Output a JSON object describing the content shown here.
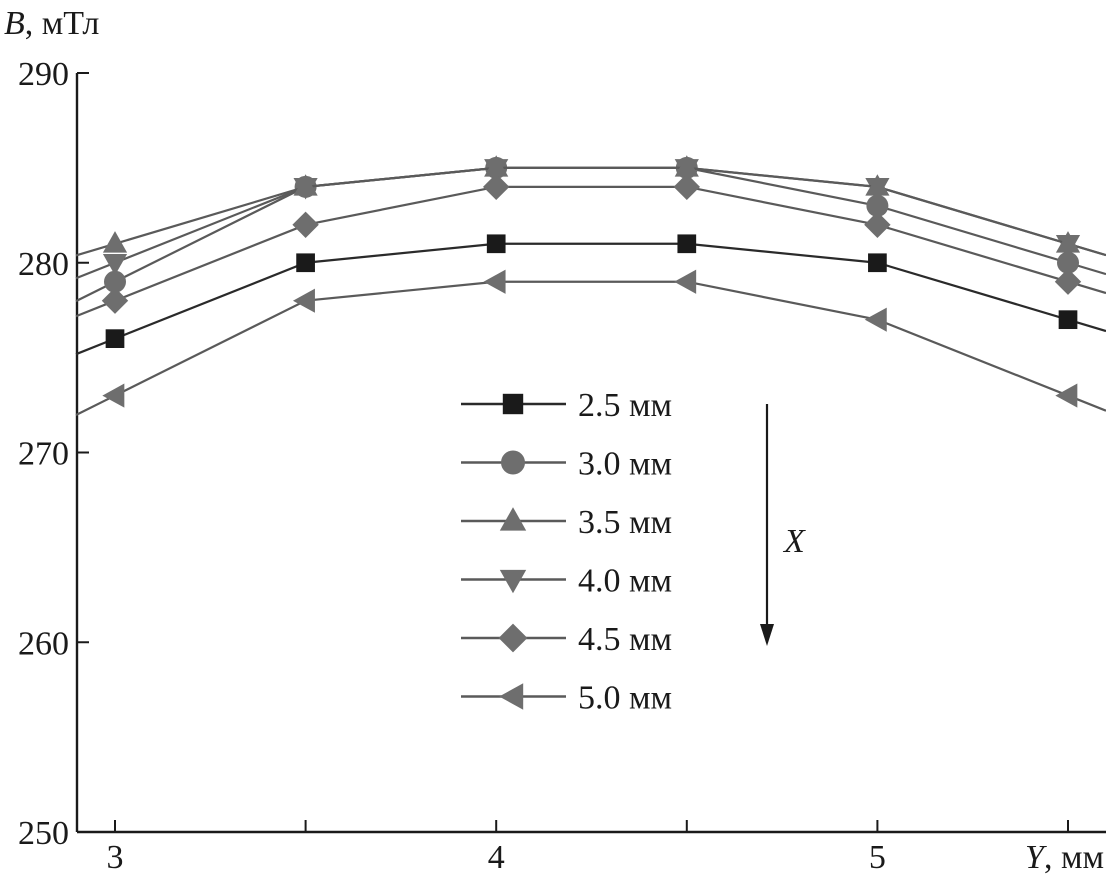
{
  "chart_data": {
    "type": "line",
    "ylabel_var": "B",
    "ylabel_unit": ", мТл",
    "xlabel_var": "Y",
    "xlabel_unit": ", мм",
    "xlim": [
      2.98,
      5.52
    ],
    "ylim": [
      250,
      290
    ],
    "x_ticks": [
      3,
      3.5,
      4,
      4.5,
      5,
      5.5
    ],
    "x_tick_labels": [
      "3",
      "",
      "4",
      "",
      "5",
      ""
    ],
    "y_ticks": [
      250,
      260,
      270,
      280,
      290
    ],
    "y_tick_labels": [
      "250",
      "260",
      "270",
      "280",
      "290"
    ],
    "x": [
      3.0,
      3.5,
      4.0,
      4.5,
      5.0,
      5.5
    ],
    "series": [
      {
        "name": "2.5 мм",
        "marker": "square",
        "color": "#1a1a1a",
        "line_color": "#2a2a2a",
        "values": [
          276,
          280,
          281,
          281,
          280,
          277
        ]
      },
      {
        "name": "3.0 мм",
        "marker": "circle",
        "color": "#6e6e6e",
        "line_color": "#5a5a5a",
        "values": [
          279,
          284,
          285,
          285,
          283,
          280
        ]
      },
      {
        "name": "3.5 мм",
        "marker": "triangle-up",
        "color": "#6e6e6e",
        "line_color": "#5a5a5a",
        "values": [
          281,
          284,
          285,
          285,
          284,
          281
        ]
      },
      {
        "name": "4.0 мм",
        "marker": "triangle-down",
        "color": "#6e6e6e",
        "line_color": "#5a5a5a",
        "values": [
          280,
          284,
          285,
          285,
          284,
          281
        ]
      },
      {
        "name": "4.5 мм",
        "marker": "diamond",
        "color": "#6e6e6e",
        "line_color": "#5a5a5a",
        "values": [
          278,
          282,
          284,
          284,
          282,
          279
        ]
      },
      {
        "name": "5.0 мм",
        "marker": "triangle-left",
        "color": "#6e6e6e",
        "line_color": "#5a5a5a",
        "values": [
          273,
          278,
          279,
          279,
          277,
          273
        ]
      }
    ],
    "legend_position": "center",
    "annotation": {
      "text": "X",
      "arrow": "down"
    },
    "grid": false
  }
}
